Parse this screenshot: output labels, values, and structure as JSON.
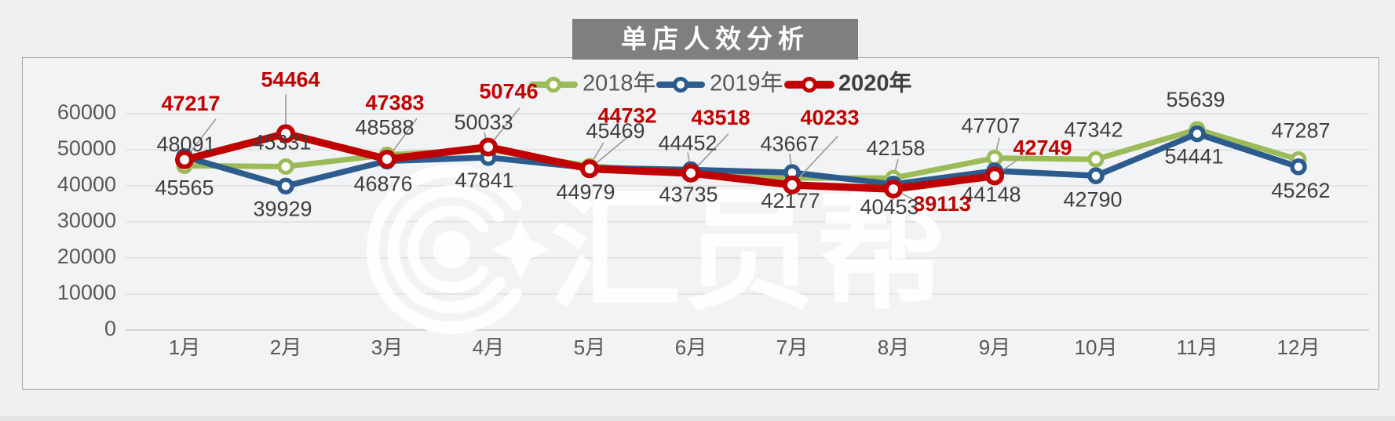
{
  "page": {
    "title": "单店人效分析",
    "watermark_text": "汇员帮",
    "colors": {
      "title_bg": "#7f7f7f",
      "title_text": "#ffffff",
      "background": "#eff0f1",
      "panel_bg": "#f2f3f4",
      "panel_border": "#a5a5a8",
      "gridline": "#d9dadc",
      "axis_text": "#58585a",
      "label_text": "#3f3f41",
      "leader_line": "#9a9a9c",
      "watermark": "#ffffff"
    }
  },
  "chart_data": {
    "type": "line",
    "title": "单店人效分析",
    "xlabel": "",
    "ylabel": "",
    "categories": [
      "1月",
      "2月",
      "3月",
      "4月",
      "5月",
      "6月",
      "7月",
      "8月",
      "9月",
      "10月",
      "11月",
      "12月"
    ],
    "y_ticks": [
      0,
      10000,
      20000,
      30000,
      40000,
      50000,
      60000
    ],
    "ylim": [
      0,
      65000
    ],
    "grid": true,
    "legend_position": "top-center",
    "series": [
      {
        "name": "2018年",
        "color": "#9bbb59",
        "bold": false,
        "values": [
          45565,
          45331,
          48588,
          50033,
          45469,
          43735,
          42177,
          42158,
          47707,
          47342,
          55639,
          47287
        ],
        "label_offsets": [
          {
            "dx": 0,
            "dy": 30,
            "leader": null
          },
          {
            "dx": -5,
            "dy": -29,
            "leader": null
          },
          {
            "dx": -3,
            "dy": -33,
            "leader": null
          },
          {
            "dx": -6,
            "dy": -33,
            "leader": [
              -5,
              -22
            ]
          },
          {
            "dx": 33,
            "dy": -43,
            "leader": [
              18,
              -30
            ]
          },
          {
            "dx": -3,
            "dy": 30,
            "leader": null
          },
          {
            "dx": -2,
            "dy": 31,
            "leader": null
          },
          {
            "dx": 3,
            "dy": -36,
            "leader": [
              6,
              -24
            ]
          },
          {
            "dx": -5,
            "dy": -39,
            "leader": [
              6,
              -26
            ]
          },
          {
            "dx": -3,
            "dy": -36,
            "leader": null
          },
          {
            "dx": -2,
            "dy": -36,
            "leader": null
          },
          {
            "dx": 3,
            "dy": -35,
            "leader": null
          }
        ]
      },
      {
        "name": "2019年",
        "color": "#2b5c8d",
        "bold": false,
        "values": [
          48091,
          39929,
          46876,
          47841,
          44979,
          44452,
          43667,
          40453,
          44148,
          42790,
          54441,
          45262
        ],
        "label_offsets": [
          {
            "dx": 2,
            "dy": -14,
            "leader": null
          },
          {
            "dx": -4,
            "dy": 31,
            "leader": null
          },
          {
            "dx": -5,
            "dy": 31,
            "leader": null
          },
          {
            "dx": -5,
            "dy": 31,
            "leader": null
          },
          {
            "dx": -5,
            "dy": 33,
            "leader": null
          },
          {
            "dx": -4,
            "dy": -32,
            "leader": [
              -4,
              -22
            ]
          },
          {
            "dx": -3,
            "dy": -35,
            "leader": [
              -3,
              -24
            ]
          },
          {
            "dx": -5,
            "dy": 31,
            "leader": [
              0,
              20
            ]
          },
          {
            "dx": -4,
            "dy": 32,
            "leader": null
          },
          {
            "dx": -4,
            "dy": 32,
            "leader": null
          },
          {
            "dx": -4,
            "dy": 31,
            "leader": null
          },
          {
            "dx": 3,
            "dy": 32,
            "leader": null
          }
        ]
      },
      {
        "name": "2020年",
        "color": "#c00000",
        "bold": true,
        "values": [
          47217,
          54464,
          47383,
          50746,
          44732,
          43518,
          40233,
          39113,
          42749,
          null,
          null,
          null
        ],
        "label_offsets": [
          {
            "dx": 8,
            "dy": -70,
            "leader": [
              40,
              -52
            ]
          },
          {
            "dx": 6,
            "dy": -67,
            "leader": [
              0,
              -50
            ]
          },
          {
            "dx": 10,
            "dy": -70,
            "leader": [
              38,
              -52
            ]
          },
          {
            "dx": 26,
            "dy": -69,
            "leader": [
              40,
              -50
            ]
          },
          {
            "dx": 48,
            "dy": -66,
            "leader": [
              55,
              -46
            ]
          },
          {
            "dx": 38,
            "dy": -69,
            "leader": [
              48,
              -50
            ]
          },
          {
            "dx": 48,
            "dy": -84,
            "leader": [
              58,
              -62
            ]
          },
          {
            "dx": 62,
            "dy": 21,
            "leader": [
              30,
              16
            ]
          },
          {
            "dx": 61,
            "dy": -34,
            "leader": [
              34,
              -24
            ]
          },
          null,
          null,
          null
        ]
      }
    ]
  }
}
